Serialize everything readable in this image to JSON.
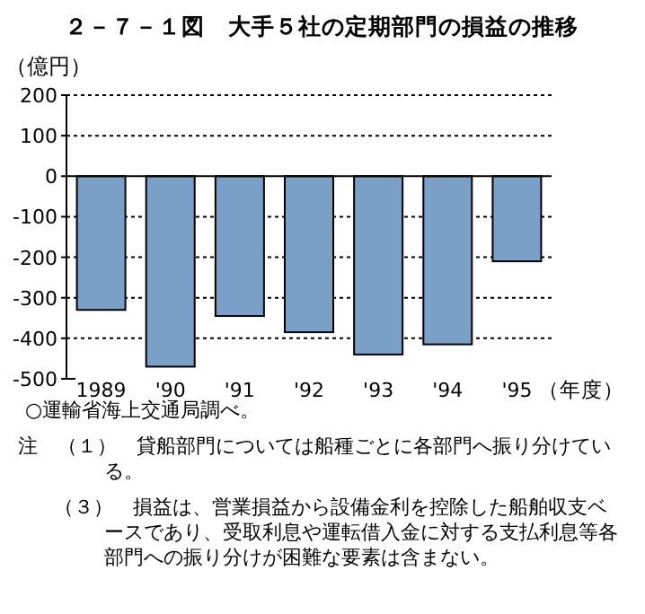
{
  "chart_data": {
    "type": "bar",
    "title": "２－７－１図　大手５社の定期部門の損益の推移",
    "ylabel": "（億円）",
    "xlabel": "（年度）",
    "categories": [
      "1989",
      "'90",
      "'91",
      "'92",
      "'93",
      "'94",
      "'95"
    ],
    "values": [
      -330,
      -470,
      -345,
      -385,
      -440,
      -415,
      -210
    ],
    "color": "#7ba0c8",
    "ylim": [
      -500,
      200
    ],
    "yticks": [
      200,
      100,
      0,
      -100,
      -200,
      -300,
      -400,
      -500
    ],
    "grid": "y",
    "annotations": [
      "○運輸省海上交通局調べ。",
      "注　（１）　貸船部門については船種ごとに各部門へ振り分けている。",
      "（３）　損益は、営業損益から設備金利を控除した船舶収支ベースであり、受取利息や運転借入金に対する支払利息等各部門への振り分けが困難な要素は含まない。"
    ]
  }
}
